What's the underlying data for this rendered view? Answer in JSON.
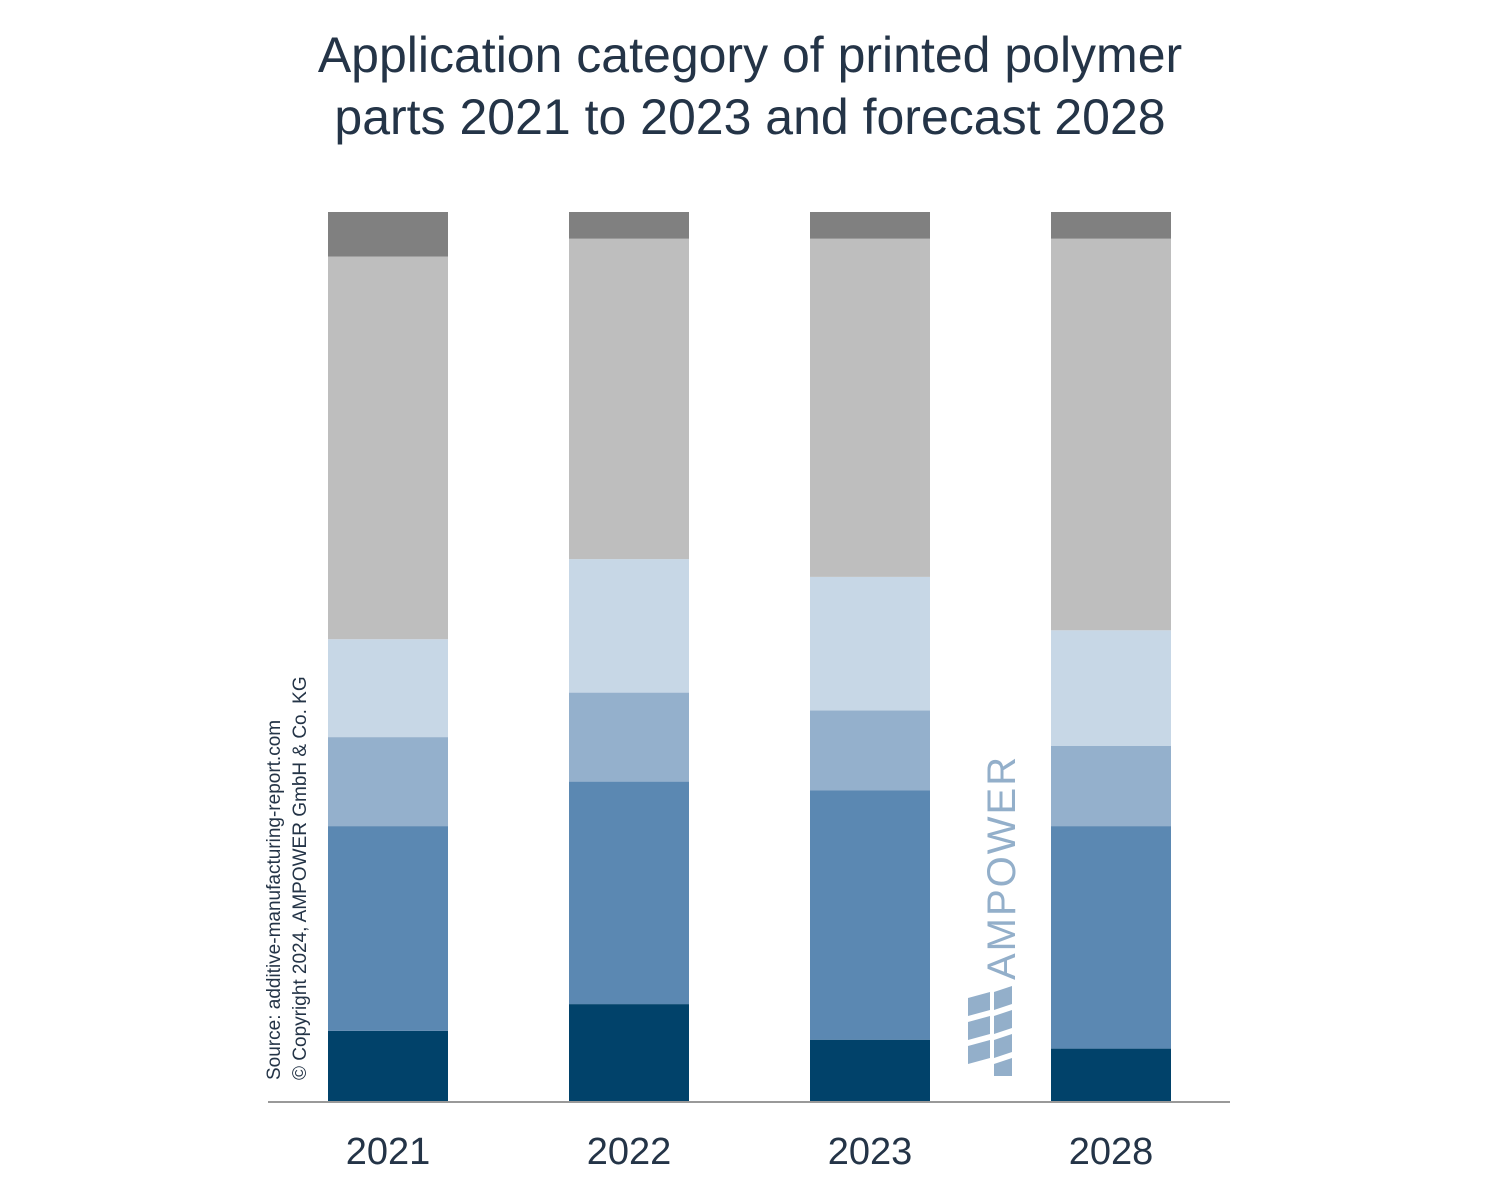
{
  "title_line1": "Application category of printed polymer",
  "title_line2": "parts 2021 to 2023 and forecast 2028",
  "source_line1": "Source: additive-manufacturing-report.com",
  "source_line2": "© Copyright 2024, AMPOWER GmbH & Co. KG",
  "logo_text": "AMPOWER",
  "colors": {
    "s1": "#01426a",
    "s2": "#5b88b2",
    "s3": "#94b0cc",
    "s4": "#c7d7e6",
    "s5": "#bebebe",
    "s6": "#808080",
    "axis": "#999999",
    "text": "#243447",
    "logo": "#93afca"
  },
  "chart_data": {
    "type": "bar",
    "stacked": true,
    "categories": [
      "2021",
      "2022",
      "2023",
      "2028"
    ],
    "ylim": [
      0,
      100
    ],
    "series": [
      {
        "values": [
          8,
          11,
          7,
          6
        ],
        "color_key": "s1"
      },
      {
        "values": [
          23,
          25,
          28,
          25
        ],
        "color_key": "s2"
      },
      {
        "values": [
          10,
          10,
          9,
          9
        ],
        "color_key": "s3"
      },
      {
        "values": [
          11,
          15,
          15,
          13
        ],
        "color_key": "s4"
      },
      {
        "values": [
          43,
          36,
          38,
          44
        ],
        "color_key": "s5"
      },
      {
        "values": [
          5,
          3,
          3,
          3
        ],
        "color_key": "s6"
      }
    ]
  }
}
